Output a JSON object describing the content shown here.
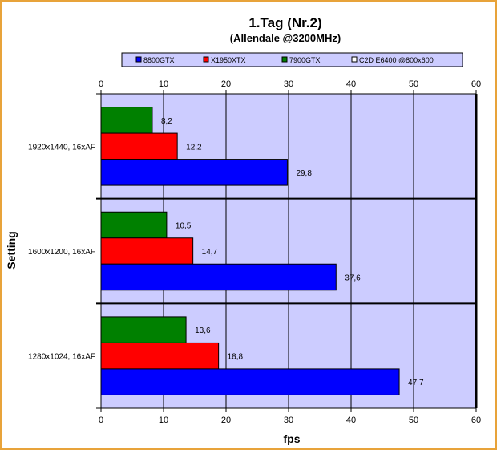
{
  "chart_data": {
    "type": "bar",
    "orientation": "horizontal",
    "title": "1.Tag (Nr.2)",
    "subtitle": "(Allendale @3200MHz)",
    "xlabel": "fps",
    "ylabel": "Setting",
    "xlim": [
      0,
      60
    ],
    "xticks": [
      0,
      10,
      20,
      30,
      40,
      50,
      60
    ],
    "grid": true,
    "legend_position": "top",
    "plot_background": "#ccccff",
    "categories": [
      "1920x1440, 16xAF",
      "1600x1200, 16xAF",
      "1280x1024, 16xAF"
    ],
    "series": [
      {
        "name": "8800GTX",
        "color": "#0000ff",
        "values": [
          29.8,
          37.6,
          47.7
        ],
        "labels": [
          "29,8",
          "37,6",
          "47,7"
        ]
      },
      {
        "name": "X1950XTX",
        "color": "#ff0000",
        "values": [
          12.2,
          14.7,
          18.8
        ],
        "labels": [
          "12,2",
          "14,7",
          "18,8"
        ]
      },
      {
        "name": "7900GTX",
        "color": "#008000",
        "values": [
          8.2,
          10.5,
          13.6
        ],
        "labels": [
          "8,2",
          "10,5",
          "13,6"
        ]
      },
      {
        "name": "C2D E6400 @800x600",
        "color": "#ffffff",
        "values": [
          null,
          null,
          null
        ],
        "labels": [
          "",
          "",
          ""
        ]
      }
    ]
  }
}
